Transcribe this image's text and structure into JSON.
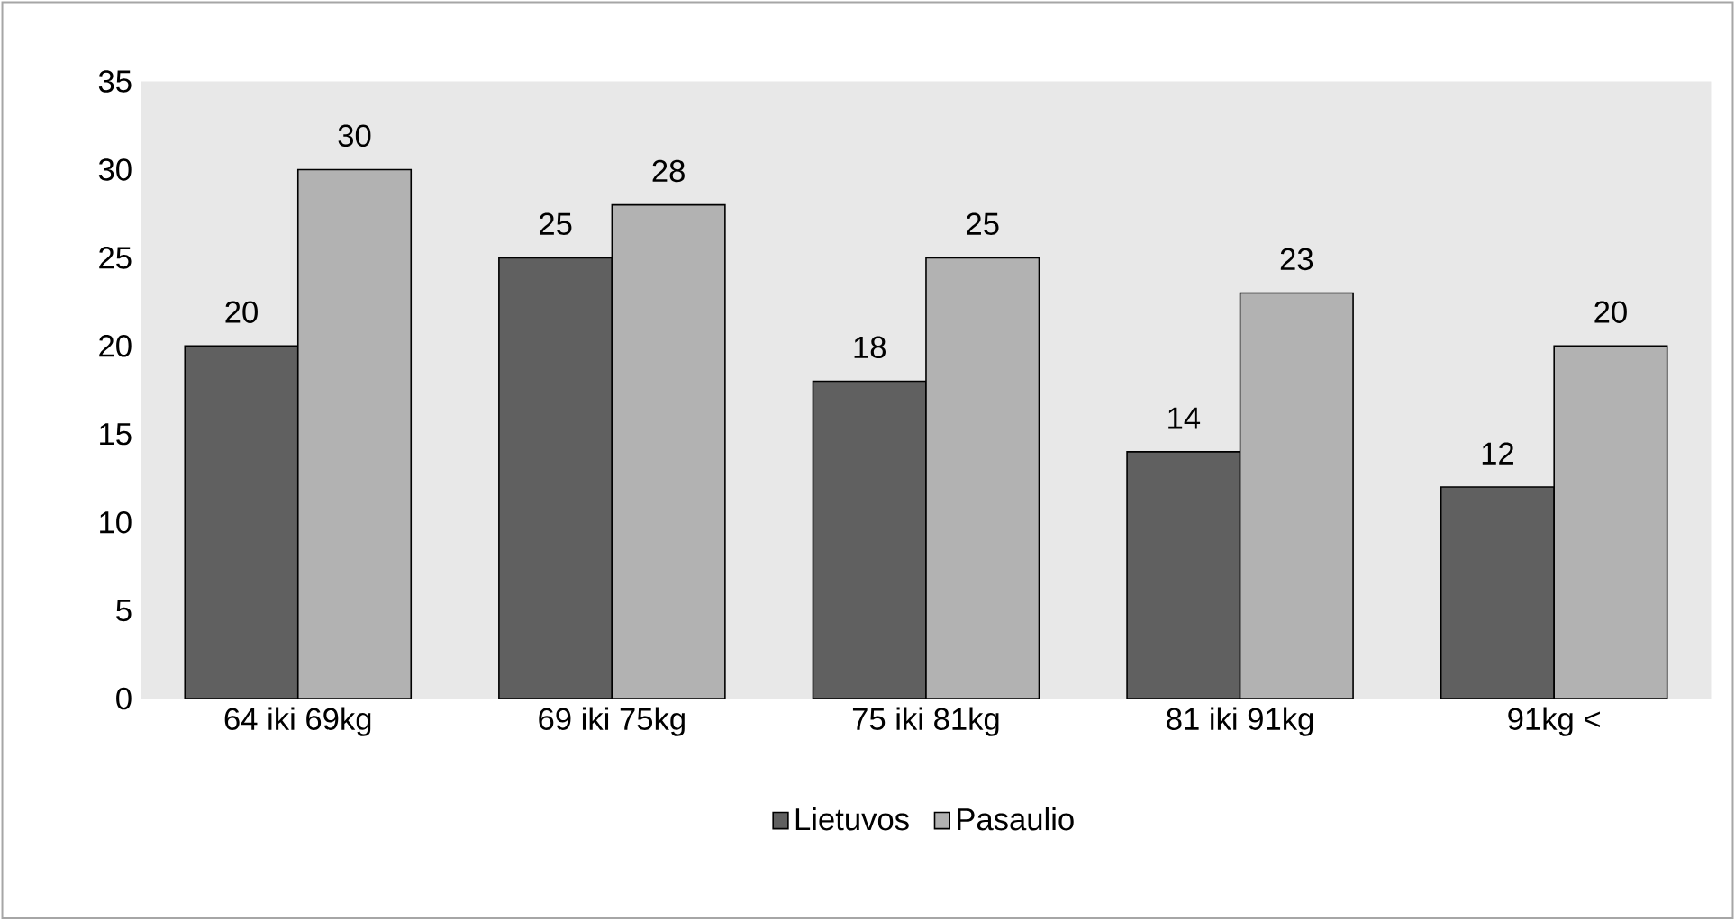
{
  "chart_data": {
    "type": "bar",
    "categories": [
      "64 iki 69kg",
      "69 iki 75kg",
      "75 iki 81kg",
      "81 iki 91kg",
      "91kg <"
    ],
    "series": [
      {
        "name": "Lietuvos",
        "color": "#606060",
        "values": [
          20,
          25,
          18,
          14,
          12
        ]
      },
      {
        "name": "Pasaulio",
        "color": "#b2b2b2",
        "values": [
          30,
          28,
          25,
          23,
          20
        ]
      }
    ],
    "ylim": [
      0,
      35
    ],
    "yticks": [
      0,
      5,
      10,
      15,
      20,
      25,
      30,
      35
    ],
    "data_labels": true,
    "legend": "bottom"
  }
}
